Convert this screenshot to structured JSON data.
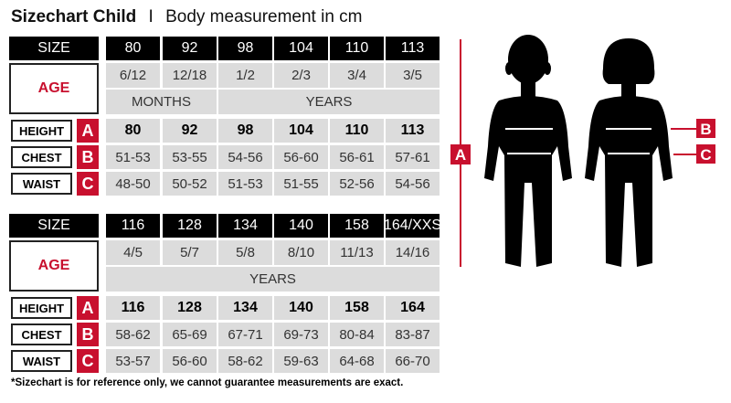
{
  "title": {
    "bold": "Sizechart Child",
    "separator": "I",
    "rest": "Body measurement in cm"
  },
  "labels": {
    "size": "SIZE",
    "age": "AGE",
    "height": "HEIGHT",
    "chest": "CHEST",
    "waist": "WAIST",
    "a": "A",
    "b": "B",
    "c": "C"
  },
  "tables": [
    {
      "sizes": [
        "80",
        "92",
        "98",
        "104",
        "110",
        "113"
      ],
      "ages": [
        "6/12",
        "12/18",
        "1/2",
        "2/3",
        "3/4",
        "3/5"
      ],
      "age_units": [
        {
          "label": "MONTHS",
          "span": 2
        },
        {
          "label": "YEARS",
          "span": 4
        }
      ],
      "height": [
        "80",
        "92",
        "98",
        "104",
        "110",
        "113"
      ],
      "chest": [
        "51-53",
        "53-55",
        "54-56",
        "56-60",
        "56-61",
        "57-61"
      ],
      "waist": [
        "48-50",
        "50-52",
        "51-53",
        "51-55",
        "52-56",
        "54-56"
      ]
    },
    {
      "sizes": [
        "116",
        "128",
        "134",
        "140",
        "158",
        "164/XXS"
      ],
      "ages": [
        "4/5",
        "5/7",
        "5/8",
        "8/10",
        "11/13",
        "14/16"
      ],
      "age_units": [
        {
          "label": "YEARS",
          "span": 6
        }
      ],
      "height": [
        "116",
        "128",
        "134",
        "140",
        "158",
        "164"
      ],
      "chest": [
        "58-62",
        "65-69",
        "67-71",
        "69-73",
        "80-84",
        "83-87"
      ],
      "waist": [
        "53-57",
        "56-60",
        "58-62",
        "59-63",
        "64-68",
        "66-70"
      ]
    }
  ],
  "footnote": "*Sizechart is for reference only, we cannot guarantee measurements are exact.",
  "colors": {
    "accent": "#c8102e",
    "header": "#000000",
    "cell": "#dcdcdc"
  }
}
